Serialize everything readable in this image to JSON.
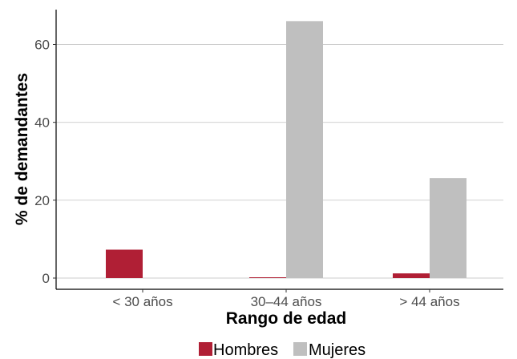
{
  "chart_data": {
    "type": "bar",
    "title": "",
    "xlabel": "Rango de edad",
    "ylabel": "% de demandantes",
    "categories": [
      "< 30 años",
      "30–44 años",
      "> 44 años"
    ],
    "series": [
      {
        "name": "Hombres",
        "color": "#b01f35",
        "values": [
          7.3,
          0.2,
          1.2
        ]
      },
      {
        "name": "Mujeres",
        "color": "#bfbfbf",
        "values": [
          0,
          66,
          25.7
        ]
      }
    ],
    "ylim": [
      0,
      70
    ],
    "yticks": [
      0,
      20,
      40,
      60
    ],
    "grid": "horizontal major",
    "legend_position": "bottom"
  }
}
